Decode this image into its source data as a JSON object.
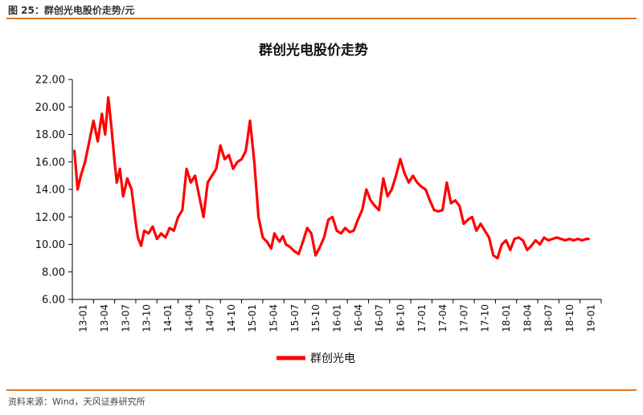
{
  "header": {
    "caption": "图 25：群创光电股价走势/元"
  },
  "footer": {
    "source": "资料来源：Wind，天风证券研究所"
  },
  "colors": {
    "line": "#ff0000",
    "rule": "#e07a2a"
  },
  "chart_data": {
    "type": "line",
    "title": "群创光电股价走势",
    "xlabel": "",
    "ylabel": "",
    "ylim": [
      6,
      22
    ],
    "yticks": [
      "6.00",
      "8.00",
      "10.00",
      "12.00",
      "14.00",
      "16.00",
      "18.00",
      "20.00",
      "22.00"
    ],
    "categories": [
      "13-01",
      "13-04",
      "13-07",
      "13-10",
      "14-01",
      "14-04",
      "14-07",
      "14-10",
      "15-01",
      "15-04",
      "15-07",
      "15-10",
      "16-01",
      "16-04",
      "16-07",
      "16-10",
      "17-01",
      "17-04",
      "17-07",
      "17-10",
      "18-01",
      "18-04",
      "18-07",
      "18-10",
      "19-01"
    ],
    "series": [
      {
        "name": "群创光电",
        "x": [
          0,
          0.15,
          0.3,
          0.5,
          0.7,
          0.9,
          1.1,
          1.3,
          1.45,
          1.6,
          1.75,
          1.9,
          2.0,
          2.15,
          2.3,
          2.5,
          2.7,
          2.9,
          3.0,
          3.15,
          3.3,
          3.5,
          3.7,
          3.9,
          4.1,
          4.3,
          4.5,
          4.7,
          4.9,
          5.1,
          5.3,
          5.5,
          5.7,
          5.9,
          6.1,
          6.3,
          6.5,
          6.7,
          6.9,
          7.1,
          7.3,
          7.5,
          7.7,
          7.9,
          8.1,
          8.3,
          8.5,
          8.7,
          8.9,
          9.1,
          9.3,
          9.45,
          9.6,
          9.7,
          9.85,
          10.0,
          10.2,
          10.4,
          10.6,
          10.8,
          11.0,
          11.2,
          11.4,
          11.6,
          11.8,
          12.0,
          12.2,
          12.4,
          12.6,
          12.8,
          13.0,
          13.2,
          13.4,
          13.6,
          13.8,
          14.0,
          14.2,
          14.4,
          14.6,
          14.8,
          15.0,
          15.2,
          15.4,
          15.6,
          15.8,
          16.0,
          16.2,
          16.4,
          16.6,
          16.8,
          17.0,
          17.2,
          17.4,
          17.6,
          17.8,
          18.0,
          18.2,
          18.4,
          18.6,
          18.8,
          19.0,
          19.2,
          19.4,
          19.6,
          19.8,
          20.0,
          20.2,
          20.4,
          20.6,
          20.8,
          21.0,
          21.2,
          21.4,
          21.6,
          21.8,
          22.0,
          22.2,
          22.4,
          22.6,
          22.8,
          23.0,
          23.2,
          23.4,
          23.6,
          23.8,
          24.0,
          24.2,
          24.3
        ],
        "values": [
          16.8,
          14.0,
          15.0,
          16.0,
          17.5,
          19.0,
          17.5,
          19.5,
          18.0,
          20.7,
          18.5,
          16.0,
          14.5,
          15.5,
          13.5,
          14.8,
          14.0,
          11.5,
          10.5,
          9.9,
          11.0,
          10.8,
          11.3,
          10.4,
          10.8,
          10.5,
          11.2,
          11.0,
          12.0,
          12.5,
          15.5,
          14.5,
          15.0,
          13.5,
          12.0,
          14.5,
          15.0,
          15.5,
          17.2,
          16.2,
          16.5,
          15.5,
          16.0,
          16.2,
          16.8,
          19.0,
          16.0,
          12.0,
          10.5,
          10.2,
          9.7,
          10.8,
          10.4,
          10.2,
          10.6,
          10.0,
          9.8,
          9.5,
          9.3,
          10.2,
          11.2,
          10.8,
          9.2,
          9.8,
          10.5,
          11.8,
          12.0,
          11.0,
          10.8,
          11.2,
          10.9,
          11.0,
          11.8,
          12.5,
          14.0,
          13.2,
          12.8,
          12.5,
          14.8,
          13.5,
          14.0,
          15.0,
          16.2,
          15.2,
          14.5,
          15.0,
          14.5,
          14.2,
          14.0,
          13.2,
          12.5,
          12.4,
          12.5,
          14.5,
          13.0,
          13.2,
          12.8,
          11.5,
          11.8,
          12.0,
          11.0,
          11.5,
          11.0,
          10.5,
          9.2,
          9.0,
          10.0,
          10.3,
          9.6,
          10.4,
          10.5,
          10.3,
          9.6,
          9.9,
          10.3,
          10.0,
          10.5,
          10.3,
          10.4,
          10.5,
          10.4,
          10.3,
          10.4,
          10.3,
          10.4,
          10.3,
          10.4,
          10.4
        ]
      }
    ],
    "legend": {
      "label": "群创光电",
      "position": "bottom-center"
    }
  }
}
